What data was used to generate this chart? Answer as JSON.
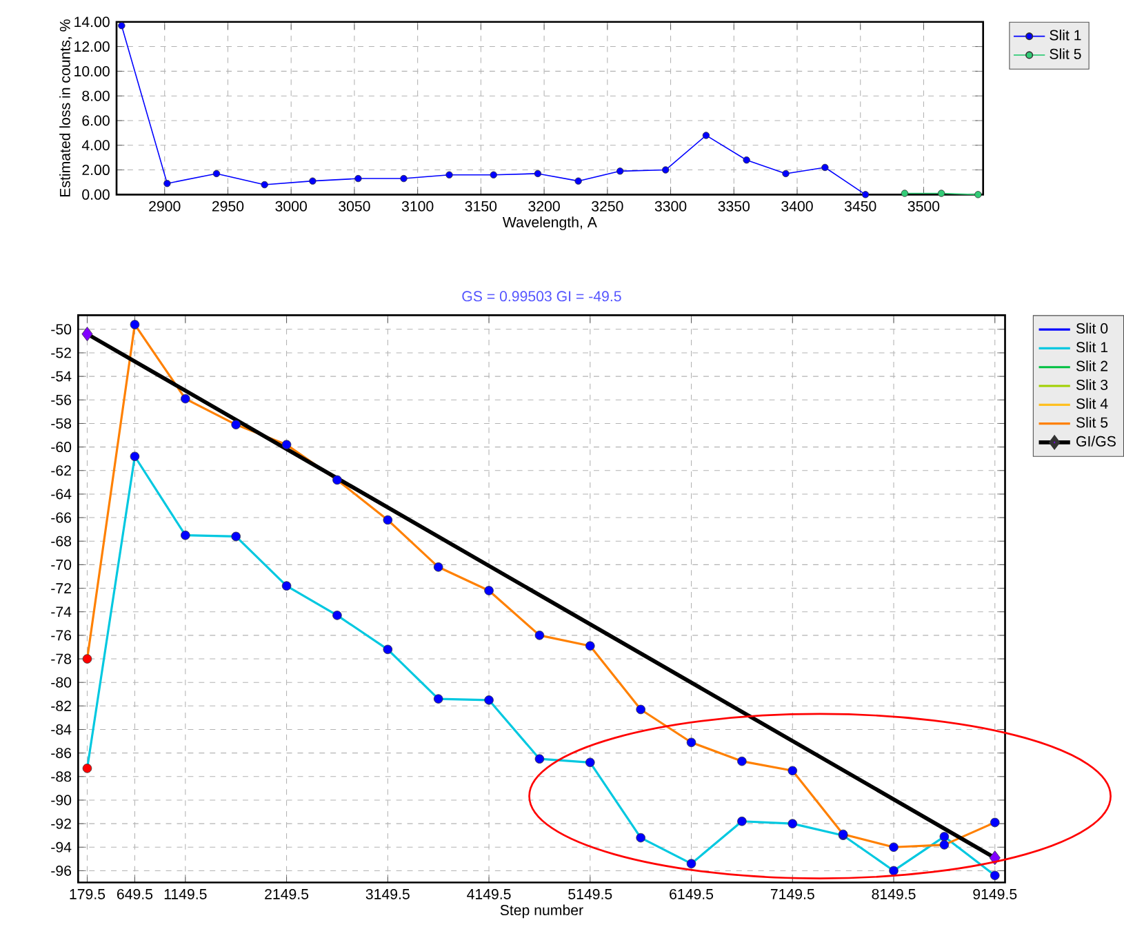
{
  "chart_data": [
    {
      "type": "line",
      "xlabel": "Wavelength, A",
      "ylabel": "Estimated loss in counts, %",
      "x": [
        2866,
        2902,
        2941,
        2979,
        3017,
        3053,
        3089,
        3125,
        3160,
        3195,
        3227,
        3260,
        3296,
        3328,
        3360,
        3391,
        3422,
        3454
      ],
      "series": [
        {
          "name": "Slit 1",
          "color": "#0000ff",
          "marker": "circle",
          "values": [
            13.7,
            0.9,
            1.7,
            0.8,
            1.1,
            1.3,
            1.3,
            1.6,
            1.6,
            1.7,
            1.1,
            1.9,
            2.0,
            4.8,
            2.8,
            1.7,
            2.2,
            0.0
          ]
        },
        {
          "name": "Slit 5",
          "color": "#33cc77",
          "marker": "circle",
          "x": [
            3485,
            3514,
            3543
          ],
          "values": [
            0.1,
            0.1,
            0.0
          ]
        }
      ],
      "xlim": [
        2862,
        3547
      ],
      "ylim": [
        0,
        14
      ],
      "xticks": [
        2900,
        2950,
        3000,
        3050,
        3100,
        3150,
        3200,
        3250,
        3300,
        3350,
        3400,
        3450,
        3500
      ],
      "yticks": [
        {
          "value": 0,
          "label": "0.00"
        },
        {
          "value": 2,
          "label": "2.00"
        },
        {
          "value": 4,
          "label": "4.00"
        },
        {
          "value": 6,
          "label": "6.00"
        },
        {
          "value": 8,
          "label": "8.00"
        },
        {
          "value": 10,
          "label": "10.00"
        },
        {
          "value": 12,
          "label": "12.00"
        },
        {
          "value": 14,
          "label": "14.00"
        }
      ],
      "grid": true,
      "legend": "top right"
    },
    {
      "type": "line",
      "title": "GS = 0.99503  GI = -49.5",
      "xlabel": "Step number",
      "x": [
        179.5,
        649.5,
        1149.5,
        1649.5,
        2149.5,
        2649.5,
        3149.5,
        3649.5,
        4149.5,
        4649.5,
        5149.5,
        5649.5,
        6149.5,
        6649.5,
        7149.5,
        7649.5,
        8149.5,
        8649.5,
        9149.5
      ],
      "series": [
        {
          "name": "Slit 0",
          "color": "#0000ff",
          "values": [
            null,
            null,
            null,
            null,
            null,
            null,
            null,
            null,
            null,
            null,
            null,
            null,
            null,
            null,
            null,
            null,
            null,
            null,
            null
          ]
        },
        {
          "name": "Slit 1",
          "color": "#00c8e0",
          "colors": [
            "#ff0000",
            "#0000ff",
            "#0000ff",
            "#0000ff",
            "#0000ff",
            "#0000ff",
            "#0000ff",
            "#0000ff",
            "#0000ff",
            "#0000ff",
            "#0000ff",
            "#0000ff",
            "#0000ff",
            "#0000ff",
            "#0000ff",
            "#0000ff",
            "#0000ff",
            "#0000ff",
            "#0000ff"
          ],
          "values": [
            -87.3,
            -60.8,
            -67.5,
            -67.6,
            -71.8,
            -74.3,
            -77.2,
            -81.4,
            -81.5,
            -86.5,
            -86.8,
            -93.2,
            -95.4,
            -91.8,
            -92.0,
            -93.0,
            -96.0,
            -93.1,
            -96.4
          ]
        },
        {
          "name": "Slit 2",
          "color": "#00c040",
          "values": [
            null,
            null,
            null,
            null,
            null,
            null,
            null,
            null,
            null,
            null,
            null,
            null,
            null,
            null,
            null,
            null,
            null,
            null,
            null
          ]
        },
        {
          "name": "Slit 3",
          "color": "#a0d000",
          "values": [
            null,
            null,
            null,
            null,
            null,
            null,
            null,
            null,
            null,
            null,
            null,
            null,
            null,
            null,
            null,
            null,
            null,
            null,
            null
          ]
        },
        {
          "name": "Slit 4",
          "color": "#ffc020",
          "values": [
            null,
            null,
            null,
            null,
            null,
            null,
            null,
            null,
            null,
            null,
            null,
            null,
            null,
            null,
            null,
            null,
            null,
            null,
            null
          ]
        },
        {
          "name": "Slit 5",
          "color": "#ff8000",
          "colors": [
            "#ff0000",
            "#0000ff",
            "#0000ff",
            "#0000ff",
            "#0000ff",
            "#0000ff",
            "#0000ff",
            "#0000ff",
            "#0000ff",
            "#0000ff",
            "#0000ff",
            "#0000ff",
            "#0000ff",
            "#0000ff",
            "#0000ff",
            "#0000ff",
            "#0000ff",
            "#0000ff",
            "#0000ff"
          ],
          "values": [
            -78.0,
            -49.6,
            -55.9,
            -58.1,
            -59.8,
            -62.8,
            -66.2,
            -70.2,
            -72.2,
            -76.0,
            -76.9,
            -82.3,
            -85.1,
            -86.7,
            -87.5,
            -92.9,
            -94.0,
            -93.8,
            -91.9
          ]
        },
        {
          "name": "GI/GS",
          "color": "#000000",
          "marker": "diamond",
          "colors": [
            "#8000ff",
            "#8000ff"
          ],
          "x": [
            179.5,
            9149.5
          ],
          "values": [
            -50.4,
            -94.9
          ]
        }
      ],
      "xlim": [
        90,
        9250
      ],
      "ylim": [
        -97,
        -48.8
      ],
      "xticks": [
        179.5,
        649.5,
        1149.5,
        2149.5,
        3149.5,
        4149.5,
        5149.5,
        6149.5,
        7149.5,
        8149.5,
        9149.5
      ],
      "yticks": [
        -96,
        -94,
        -92,
        -90,
        -88,
        -86,
        -84,
        -82,
        -80,
        -78,
        -76,
        -74,
        -72,
        -70,
        -68,
        -66,
        -64,
        -62,
        -60,
        -58,
        -56,
        -54,
        -52,
        -50
      ],
      "grid": true,
      "legend": "top right",
      "marker": "circle"
    }
  ]
}
